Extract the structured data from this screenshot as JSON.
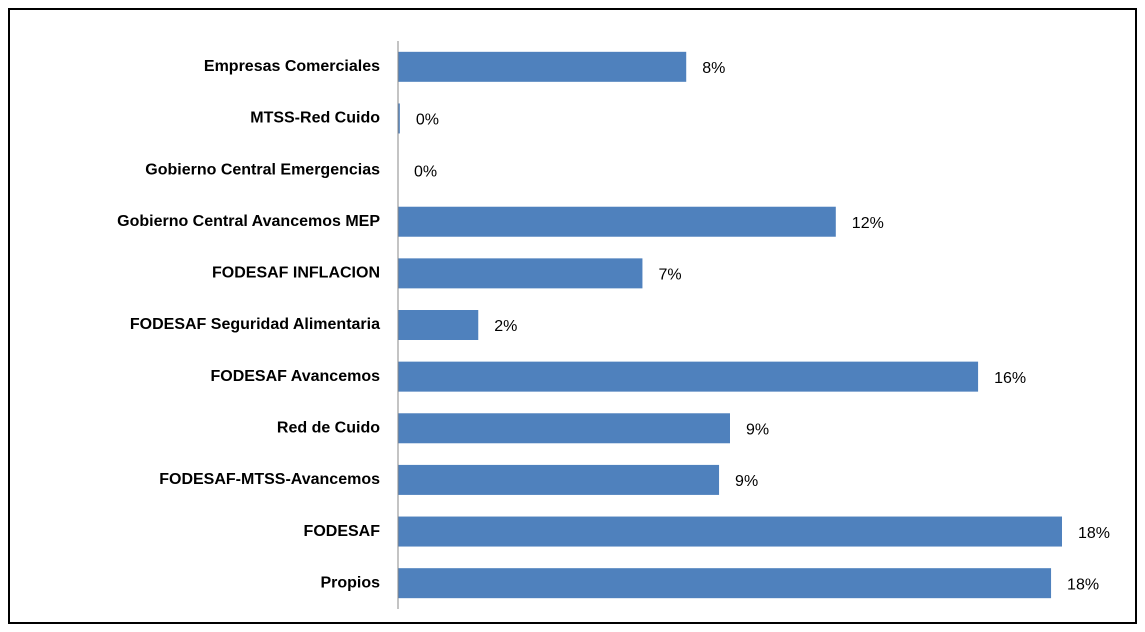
{
  "chart_data": {
    "type": "bar",
    "orientation": "horizontal",
    "color": "#4f81bd",
    "categories": [
      "Empresas Comerciales",
      "MTSS-Red Cuido",
      "Gobierno Central Emergencias",
      "Gobierno Central Avancemos MEP",
      "FODESAF INFLACION",
      "FODESAF Seguridad Alimentaria",
      "FODESAF Avancemos",
      "Red de Cuido",
      "FODESAF-MTSS-Avancemos",
      "FODESAF",
      "Propios"
    ],
    "values": [
      7.9,
      0.05,
      0,
      12,
      6.7,
      2.2,
      15.9,
      9.1,
      8.8,
      18.2,
      17.9
    ],
    "value_labels": [
      "8%",
      "0%",
      "0%",
      "12%",
      "7%",
      "2%",
      "16%",
      "9%",
      "9%",
      "18%",
      "18%"
    ],
    "xlim": [
      0,
      18.2
    ]
  }
}
